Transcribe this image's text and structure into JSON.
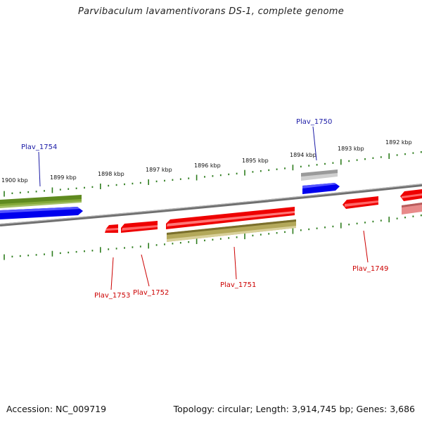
{
  "header": {
    "title": "Parvibaculum lavamentivorans DS-1, complete genome"
  },
  "footer": {
    "accession": "Accession: NC_009719",
    "topology": "Topology: circular; Length: 3,914,745 bp; Genes: 3,686"
  },
  "colors": {
    "backbone": "#8a8a8a",
    "tick": "#2e7d1e",
    "forward_gene": "#0000ff",
    "reverse_gene": "#ff0000",
    "forward_label": "#1a1aa6",
    "reverse_label": "#cc0000",
    "feature_green": "#5f8a1f",
    "feature_olive": "#b3a85a",
    "feature_grey": "#a9a9a9",
    "feature_pink": "#e88a8a"
  },
  "ticks": {
    "labels": [
      "1900 kbp",
      "1899 kbp",
      "1898 kbp",
      "1897 kbp",
      "1896 kbp",
      "1895 kbp",
      "1894 kbp",
      "1893 kbp",
      "1892 kbp"
    ]
  },
  "genes": {
    "plav_1754": "Plav_1754",
    "plav_1750": "Plav_1750",
    "plav_1753": "Plav_1753",
    "plav_1752": "Plav_1752",
    "plav_1751": "Plav_1751",
    "plav_1749": "Plav_1749"
  }
}
